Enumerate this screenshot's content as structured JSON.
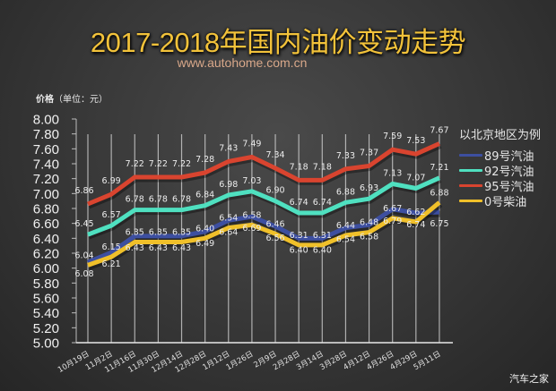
{
  "header": {
    "title": "2017-2018年国内油价变动走势",
    "subtitle": "www.autohome.com.cn",
    "y_unit_label_bold": "价格",
    "y_unit_label": "（单位：元）"
  },
  "legend": {
    "title": "以北京地区为例"
  },
  "watermark": "汽车之家",
  "chart_data": {
    "type": "line",
    "title": "2017-2018年国内油价变动走势",
    "subtitle": "www.autohome.com.cn",
    "xlabel": "",
    "ylabel": "价格（单位：元）",
    "ylim": [
      5.0,
      8.0
    ],
    "yticks": [
      "5.00",
      "5.20",
      "5.40",
      "5.60",
      "5.80",
      "6.00",
      "6.20",
      "6.40",
      "6.60",
      "6.80",
      "7.00",
      "7.20",
      "7.40",
      "7.60",
      "7.80",
      "8.00"
    ],
    "grid": "vertical",
    "legend_position": "right",
    "legend_title": "以北京地区为例",
    "categories": [
      "10月19日",
      "11月2日",
      "11月16日",
      "11月30日",
      "12月14日",
      "12月28日",
      "1月12日",
      "1月26日",
      "2月9日",
      "2月28日",
      "3月14日",
      "3月28日",
      "4月12日",
      "4月26日",
      "4月29日",
      "5月11日"
    ],
    "series": [
      {
        "name": "89号汽油",
        "color": "#3d4fa0",
        "values": [
          6.08,
          6.21,
          6.43,
          6.43,
          6.43,
          6.49,
          6.64,
          6.69,
          6.56,
          6.4,
          6.4,
          6.54,
          6.58,
          6.79,
          6.74,
          6.75
        ]
      },
      {
        "name": "92号汽油",
        "color": "#4fe0c0",
        "values": [
          6.45,
          6.57,
          6.78,
          6.78,
          6.78,
          6.84,
          6.98,
          7.03,
          6.9,
          6.74,
          6.74,
          6.88,
          6.93,
          7.13,
          7.07,
          7.21
        ]
      },
      {
        "name": "95号汽油",
        "color": "#d9442f",
        "values": [
          6.86,
          6.99,
          7.22,
          7.22,
          7.22,
          7.28,
          7.43,
          7.49,
          7.34,
          7.18,
          7.18,
          7.33,
          7.37,
          7.59,
          7.53,
          7.67
        ]
      },
      {
        "name": "0号柴油",
        "color": "#f0c02a",
        "values": [
          6.04,
          6.15,
          6.35,
          6.35,
          6.35,
          6.4,
          6.54,
          6.58,
          6.46,
          6.31,
          6.31,
          6.44,
          6.48,
          6.67,
          6.62,
          6.88
        ]
      }
    ]
  }
}
